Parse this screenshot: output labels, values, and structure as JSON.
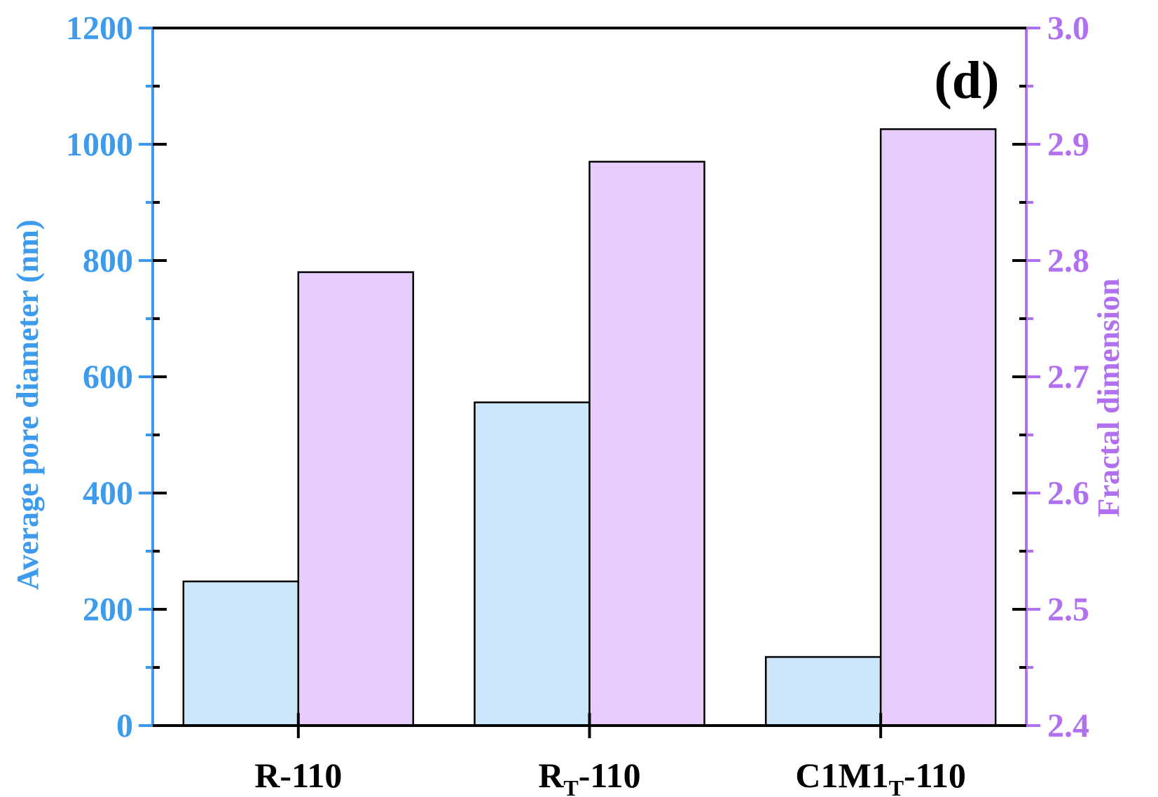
{
  "chart_data": {
    "type": "bar",
    "panel_label": "(d)",
    "categories": [
      {
        "main": "R",
        "sub": "",
        "suffix": "-110"
      },
      {
        "main": "R",
        "sub": "T",
        "suffix": "-110"
      },
      {
        "main": "C1M1",
        "sub": "T",
        "suffix": "-110"
      }
    ],
    "series": [
      {
        "axis": "left",
        "values": [
          248,
          556,
          118
        ],
        "color": "#cce6fb"
      },
      {
        "axis": "right",
        "values": [
          2.79,
          2.885,
          2.913
        ],
        "color": "#e6cdfb"
      }
    ],
    "left_axis": {
      "label": "Average pore diameter (nm)",
      "range": [
        0,
        1200
      ],
      "ticks": [
        "0",
        "200",
        "400",
        "600",
        "800",
        "1000",
        "1200"
      ],
      "color": "#3d9bee"
    },
    "right_axis": {
      "label": "Fractal dimension",
      "range": [
        2.4,
        3.0
      ],
      "ticks": [
        "2.4",
        "2.5",
        "2.6",
        "2.7",
        "2.8",
        "2.9",
        "3.0"
      ],
      "color": "#b070f0"
    },
    "grid": false,
    "legend": "none"
  }
}
